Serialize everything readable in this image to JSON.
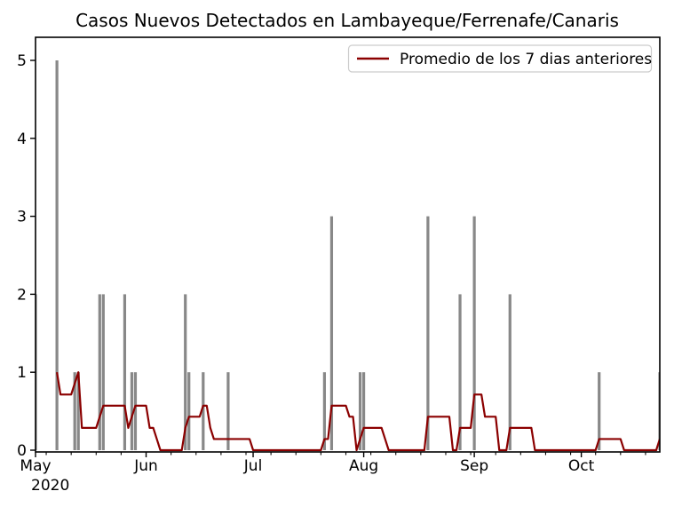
{
  "title": "Casos Nuevos Detectados en Lambayeque/Ferrenafe/Canaris",
  "legend": {
    "label": "Promedio de los 7 dias anteriores"
  },
  "colors": {
    "bar": "#888888",
    "avg_line": "#8b0000",
    "axis": "#000000",
    "text": "#000000",
    "legend_border": "#cccccc",
    "background": "#ffffff"
  },
  "chart_data": {
    "type": "bar",
    "title": "Casos Nuevos Detectados en Lambayeque/Ferrenafe/Canaris",
    "xlabel": "",
    "ylabel": "",
    "grid": false,
    "legend_position": "upper right",
    "x_axis": {
      "start": "2020-05-01",
      "end": "2020-10-23",
      "year_label": "2020",
      "month_ticks": [
        {
          "label": "May",
          "day_offset": 0
        },
        {
          "label": "Jun",
          "day_offset": 31
        },
        {
          "label": "Jul",
          "day_offset": 61
        },
        {
          "label": "Aug",
          "day_offset": 92
        },
        {
          "label": "Sep",
          "day_offset": 123
        },
        {
          "label": "Oct",
          "day_offset": 153
        }
      ],
      "weekly_minor_tick_offsets": [
        3,
        10,
        17,
        24,
        38,
        45,
        52,
        59,
        66,
        73,
        80,
        87,
        94,
        101,
        108,
        115,
        122,
        129,
        136,
        143,
        150,
        157,
        164,
        171
      ]
    },
    "y_axis": {
      "ticks": [
        0,
        1,
        2,
        3,
        4,
        5
      ],
      "range": [
        0,
        5.3
      ]
    },
    "bars": [
      {
        "date": "2020-05-01",
        "day_offset": 0,
        "cases": 2
      },
      {
        "date": "2020-05-07",
        "day_offset": 6,
        "cases": 5
      },
      {
        "date": "2020-05-12",
        "day_offset": 11,
        "cases": 1
      },
      {
        "date": "2020-05-13",
        "day_offset": 12,
        "cases": 1
      },
      {
        "date": "2020-05-19",
        "day_offset": 18,
        "cases": 2
      },
      {
        "date": "2020-05-20",
        "day_offset": 19,
        "cases": 2
      },
      {
        "date": "2020-05-26",
        "day_offset": 25,
        "cases": 2
      },
      {
        "date": "2020-05-28",
        "day_offset": 27,
        "cases": 1
      },
      {
        "date": "2020-05-29",
        "day_offset": 28,
        "cases": 1
      },
      {
        "date": "2020-06-12",
        "day_offset": 42,
        "cases": 2
      },
      {
        "date": "2020-06-13",
        "day_offset": 43,
        "cases": 1
      },
      {
        "date": "2020-06-17",
        "day_offset": 47,
        "cases": 1
      },
      {
        "date": "2020-06-24",
        "day_offset": 54,
        "cases": 1
      },
      {
        "date": "2020-07-21",
        "day_offset": 81,
        "cases": 1
      },
      {
        "date": "2020-07-23",
        "day_offset": 83,
        "cases": 3
      },
      {
        "date": "2020-07-31",
        "day_offset": 91,
        "cases": 1
      },
      {
        "date": "2020-08-01",
        "day_offset": 92,
        "cases": 1
      },
      {
        "date": "2020-08-19",
        "day_offset": 110,
        "cases": 3
      },
      {
        "date": "2020-08-28",
        "day_offset": 119,
        "cases": 2
      },
      {
        "date": "2020-09-01",
        "day_offset": 123,
        "cases": 3
      },
      {
        "date": "2020-09-11",
        "day_offset": 133,
        "cases": 2
      },
      {
        "date": "2020-10-06",
        "day_offset": 158,
        "cases": 1
      },
      {
        "date": "2020-10-23",
        "day_offset": 175,
        "cases": 1
      }
    ],
    "series": [
      {
        "name": "Promedio de los 7 dias anteriores",
        "type": "line",
        "color": "#8b0000",
        "point_format": "[day_offset_from_2020-05-01, value]",
        "points": [
          [
            6,
            1.0
          ],
          [
            7,
            0.714
          ],
          [
            10,
            0.714
          ],
          [
            11,
            0.857
          ],
          [
            12,
            1.0
          ],
          [
            13,
            0.286
          ],
          [
            17,
            0.286
          ],
          [
            18,
            0.429
          ],
          [
            19,
            0.571
          ],
          [
            25,
            0.571
          ],
          [
            26,
            0.286
          ],
          [
            27,
            0.429
          ],
          [
            28,
            0.571
          ],
          [
            31,
            0.571
          ],
          [
            32,
            0.286
          ],
          [
            33,
            0.286
          ],
          [
            34,
            0.143
          ],
          [
            35,
            0
          ],
          [
            41,
            0
          ],
          [
            42,
            0.286
          ],
          [
            43,
            0.429
          ],
          [
            46,
            0.429
          ],
          [
            47,
            0.571
          ],
          [
            48,
            0.571
          ],
          [
            49,
            0.286
          ],
          [
            50,
            0.143
          ],
          [
            60,
            0.143
          ],
          [
            61,
            0
          ],
          [
            80,
            0
          ],
          [
            81,
            0.143
          ],
          [
            82,
            0.143
          ],
          [
            83,
            0.571
          ],
          [
            87,
            0.571
          ],
          [
            88,
            0.429
          ],
          [
            89,
            0.429
          ],
          [
            90,
            0
          ],
          [
            91,
            0.143
          ],
          [
            92,
            0.286
          ],
          [
            97,
            0.286
          ],
          [
            98,
            0.143
          ],
          [
            99,
            0
          ],
          [
            109,
            0
          ],
          [
            110,
            0.429
          ],
          [
            116,
            0.429
          ],
          [
            117,
            0
          ],
          [
            118,
            0
          ],
          [
            119,
            0.286
          ],
          [
            122,
            0.286
          ],
          [
            123,
            0.714
          ],
          [
            125,
            0.714
          ],
          [
            126,
            0.429
          ],
          [
            129,
            0.429
          ],
          [
            130,
            0
          ],
          [
            132,
            0
          ],
          [
            133,
            0.286
          ],
          [
            139,
            0.286
          ],
          [
            140,
            0
          ],
          [
            157,
            0
          ],
          [
            158,
            0.143
          ],
          [
            164,
            0.143
          ],
          [
            165,
            0
          ],
          [
            174,
            0
          ],
          [
            175,
            0.143
          ]
        ]
      }
    ]
  }
}
